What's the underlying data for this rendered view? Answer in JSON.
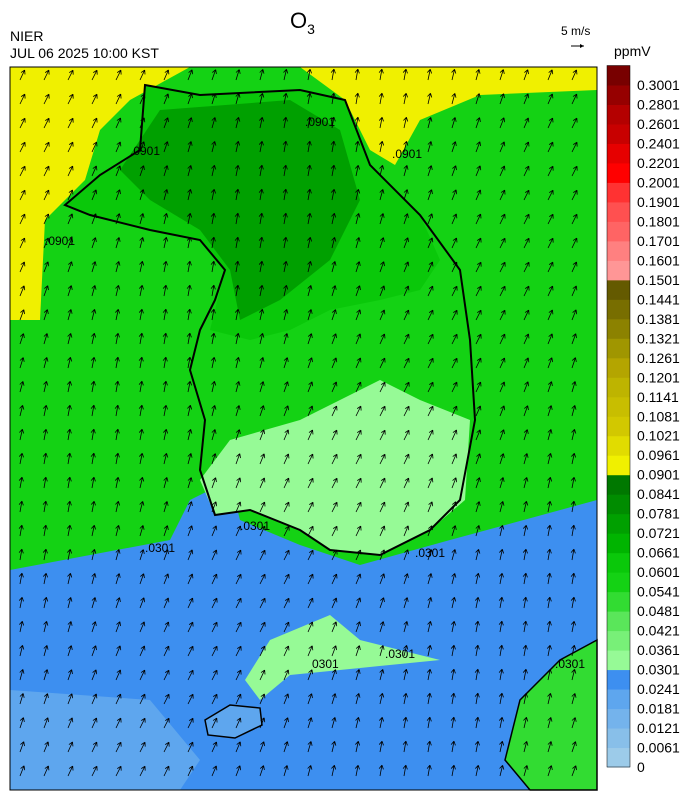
{
  "header": {
    "title": "O",
    "title_sub": "3",
    "agency": "NIER",
    "timestamp": "JUL 06 2025 10:00 KST"
  },
  "wind_scale": {
    "label": "5 m/s"
  },
  "colorbar": {
    "unit": "ppmV",
    "ticks": [
      0,
      0.0061,
      0.0121,
      0.0181,
      0.0241,
      0.0301,
      0.0361,
      0.0421,
      0.0481,
      0.0541,
      0.0601,
      0.0661,
      0.0721,
      0.0781,
      0.0841,
      0.0901,
      0.0961,
      0.1021,
      0.1081,
      0.1141,
      0.1201,
      0.1261,
      0.1321,
      0.1381,
      0.1441,
      0.1501,
      0.1601,
      0.1701,
      0.1801,
      0.1901,
      0.2001,
      0.2201,
      0.2401,
      0.2601,
      0.2801,
      0.3001
    ],
    "colors": [
      "#9ccbe9",
      "#88bfe9",
      "#74b3ec",
      "#5ea6ee",
      "#3d8ff0",
      "#96fa96",
      "#78f078",
      "#5ae65a",
      "#32dc32",
      "#14d214",
      "#0ac80a",
      "#00b400",
      "#00a000",
      "#008c00",
      "#007800",
      "#f0f000",
      "#e1dc00",
      "#d2c800",
      "#c8be00",
      "#beb400",
      "#b4a500",
      "#a09600",
      "#8c8200",
      "#786e00",
      "#645a00",
      "#ff9696",
      "#ff8080",
      "#ff6464",
      "#ff5050",
      "#ff3232",
      "#ff0000",
      "#e60000",
      "#c80000",
      "#b40000",
      "#960000",
      "#780000"
    ]
  },
  "map": {
    "contour_labels": [
      ".0901",
      ".0901",
      ".0901",
      ".0901",
      ".0301",
      ".0301",
      ".0301",
      "0301",
      ".0301",
      ".0301"
    ]
  }
}
